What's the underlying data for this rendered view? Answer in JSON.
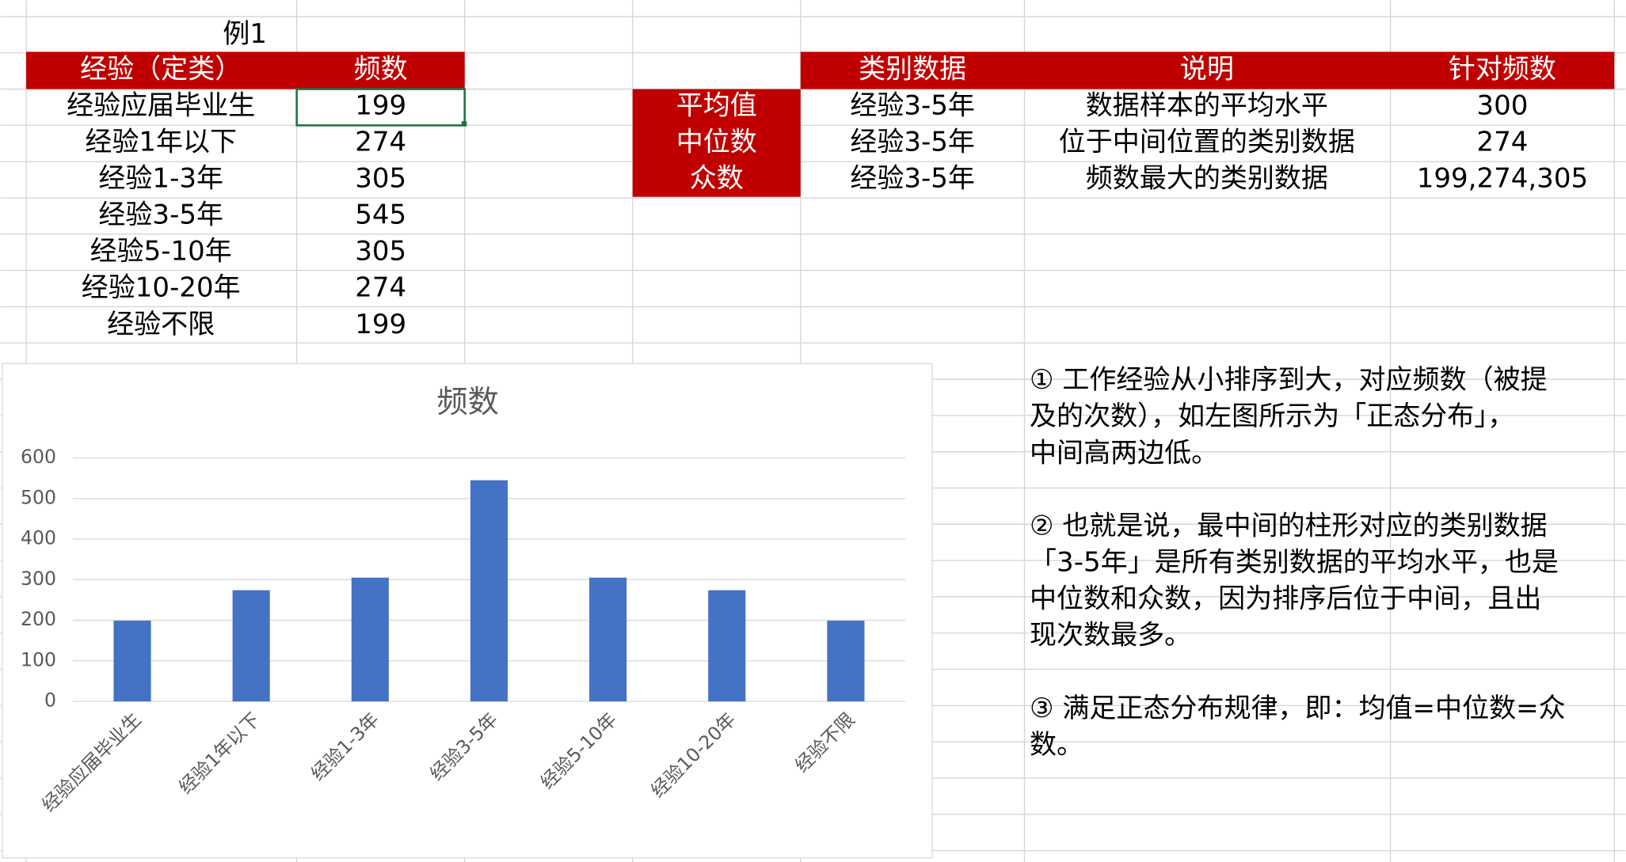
{
  "left_table": {
    "title": "例1",
    "header": [
      "经验（定类）",
      "频数"
    ],
    "rows": [
      [
        "经验应届毕业生",
        "199"
      ],
      [
        "经验1年以下",
        "274"
      ],
      [
        "经验1-3年",
        "305"
      ],
      [
        "经验3-5年",
        "545"
      ],
      [
        "经验5-10年",
        "305"
      ],
      [
        "经验10-20年",
        "274"
      ],
      [
        "经验不限",
        "199"
      ]
    ]
  },
  "right_table": {
    "header": [
      "类别数据",
      "说明",
      "针对频数"
    ],
    "rows": [
      [
        "平均值",
        "经验3-5年",
        "数据样本的平均水平",
        "300"
      ],
      [
        "中位数",
        "经验3-5年",
        "位于中间位置的类别数据",
        "274"
      ],
      [
        "众数",
        "经验3-5年",
        "频数最大的类别数据",
        "199,274,305"
      ]
    ]
  },
  "notes": [
    [
      "① 工作经验从小排序到大，对应频数（被提",
      "及的次数），如左图所示为「正态分布」，",
      "中间高两边低。"
    ],
    [
      "② 也就是说，最中间的柱形对应的类别数据",
      "「3-5年」是所有类别数据的平均水平，也是",
      "中位数和众数，因为排序后位于中间，且出",
      "现次数最多。"
    ],
    [
      "③ 满足正态分布规律，即：均值=中位数=众",
      "数。"
    ]
  ],
  "chart_data": {
    "type": "bar",
    "title": "频数",
    "categories": [
      "经验应届毕业生",
      "经验1年以下",
      "经验1-3年",
      "经验3-5年",
      "经验5-10年",
      "经验10-20年",
      "经验不限"
    ],
    "values": [
      199,
      274,
      305,
      545,
      305,
      274,
      199
    ],
    "color": "#4472c4",
    "ylim": [
      0,
      600
    ],
    "yticks": [
      0,
      100,
      200,
      300,
      400,
      500,
      600
    ],
    "grid": true
  }
}
